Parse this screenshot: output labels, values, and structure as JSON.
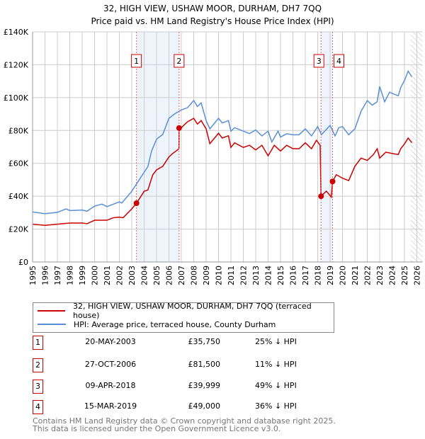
{
  "chart_data": {
    "type": "line",
    "title": "32, HIGH VIEW, USHAW MOOR, DURHAM, DH7 7QQ",
    "subtitle": "Price paid vs. HM Land Registry's House Price Index (HPI)",
    "xlim": [
      1995,
      2026
    ],
    "ylim": [
      0,
      140000
    ],
    "yticks": [
      0,
      20000,
      40000,
      60000,
      80000,
      100000,
      120000,
      140000
    ],
    "ytick_labels": [
      "£0",
      "£20K",
      "£40K",
      "£60K",
      "£80K",
      "£100K",
      "£120K",
      "£140K"
    ],
    "xticks": [
      1995,
      1996,
      1997,
      1998,
      1999,
      2000,
      2001,
      2002,
      2003,
      2004,
      2005,
      2006,
      2007,
      2008,
      2009,
      2010,
      2011,
      2012,
      2013,
      2014,
      2015,
      2016,
      2017,
      2018,
      2019,
      2020,
      2021,
      2022,
      2023,
      2024,
      2025,
      2026
    ],
    "grid": true,
    "forecast_hatch_from": 2025.5,
    "series": [
      {
        "name": "32, HIGH VIEW, USHAW MOOR, DURHAM, DH7 7QQ (terraced house)",
        "color": "#cc0000",
        "x": [
          1995,
          1996,
          1997,
          1998,
          1999,
          1999.4,
          2000,
          2001,
          2001.5,
          2002,
          2002.3,
          2003,
          2003.38,
          2004,
          2004.3,
          2004.7,
          2005,
          2005.5,
          2006,
          2006.3,
          2006.7,
          2006.81,
          2006.82,
          2007,
          2007.5,
          2008,
          2008.3,
          2008.6,
          2009,
          2009.3,
          2010,
          2010.3,
          2010.8,
          2011,
          2011.3,
          2012,
          2012.5,
          2013,
          2013.5,
          2014,
          2014.5,
          2015,
          2015.5,
          2016,
          2016.5,
          2017,
          2017.5,
          2017.9,
          2018.2,
          2018.27,
          2018.7,
          2019.1,
          2019.2,
          2019.5,
          2020,
          2020.5,
          2021,
          2021.5,
          2022,
          2022.5,
          2022.8,
          2023,
          2023.5,
          2024,
          2024.5,
          2024.7,
          2025,
          2025.3,
          2025.6
        ],
        "y": [
          23000,
          22300,
          23000,
          23700,
          23700,
          23300,
          25400,
          25400,
          26900,
          27300,
          26900,
          32300,
          35750,
          43000,
          43800,
          53100,
          56000,
          58200,
          63900,
          66000,
          68200,
          69000,
          81500,
          81700,
          85300,
          87400,
          83900,
          86000,
          81000,
          72000,
          78300,
          75400,
          76800,
          69700,
          72500,
          69700,
          71000,
          68200,
          71000,
          64600,
          71000,
          67500,
          71000,
          68900,
          68900,
          72500,
          68900,
          74000,
          71000,
          39999,
          43100,
          39500,
          49000,
          53100,
          51000,
          49500,
          58200,
          63200,
          61800,
          65400,
          68900,
          63200,
          66800,
          66000,
          65400,
          68900,
          71800,
          75400,
          72500
        ]
      },
      {
        "name": "HPI: Average price, terraced house, County Durham",
        "color": "#5b8fd4",
        "x": [
          1995,
          1996,
          1997,
          1997.7,
          1998,
          1999,
          1999.4,
          2000,
          2000.6,
          2001,
          2002,
          2002.2,
          2003,
          2003.5,
          2004,
          2004.3,
          2004.6,
          2005,
          2005.5,
          2006,
          2006.5,
          2007,
          2007.5,
          2008,
          2008.3,
          2008.6,
          2009,
          2009.3,
          2010,
          2010.3,
          2010.8,
          2011,
          2011.3,
          2012,
          2012.5,
          2013,
          2013.5,
          2014,
          2014.3,
          2014.8,
          2015,
          2015.5,
          2016,
          2016.5,
          2017,
          2017.5,
          2018,
          2018.3,
          2019,
          2019.4,
          2019.7,
          2020,
          2020.5,
          2021,
          2021.5,
          2022,
          2022.4,
          2022.8,
          2023,
          2023.4,
          2023.8,
          2024,
          2024.5,
          2024.7,
          2025,
          2025.3,
          2025.6
        ],
        "y": [
          30400,
          29400,
          30200,
          32300,
          31300,
          31600,
          30900,
          34000,
          35200,
          33700,
          36600,
          35900,
          43000,
          48800,
          54600,
          58000,
          67500,
          74700,
          77600,
          87400,
          90300,
          92500,
          93900,
          98200,
          94600,
          96800,
          86000,
          81000,
          87400,
          84600,
          86000,
          79600,
          81700,
          79600,
          78100,
          80300,
          76700,
          79600,
          73000,
          79600,
          76000,
          78000,
          77400,
          77400,
          81000,
          76700,
          82400,
          77400,
          83100,
          76700,
          81700,
          82400,
          77400,
          81000,
          91700,
          98200,
          95400,
          97500,
          106800,
          97500,
          103300,
          102600,
          101100,
          106100,
          110400,
          116100,
          112600
        ]
      }
    ],
    "sales": [
      {
        "label": "1",
        "x": 2003.38,
        "date": "20-MAY-2003",
        "price": "£35,750",
        "price_value": 35750,
        "hpi": "25% ↓ HPI"
      },
      {
        "label": "2",
        "x": 2006.82,
        "date": "27-OCT-2006",
        "price": "£81,500",
        "price_value": 81500,
        "hpi": "11% ↓ HPI"
      },
      {
        "label": "3",
        "x": 2018.27,
        "date": "09-APR-2018",
        "price": "£39,999",
        "price_value": 39999,
        "hpi": "49% ↓ HPI"
      },
      {
        "label": "4",
        "x": 2019.2,
        "date": "15-MAR-2019",
        "price": "£49,000",
        "price_value": 49000,
        "hpi": "36% ↓ HPI"
      }
    ]
  },
  "footer": {
    "line1": "Contains HM Land Registry data © Crown copyright and database right 2025.",
    "line2": "This data is licensed under the Open Government Licence v3.0."
  }
}
